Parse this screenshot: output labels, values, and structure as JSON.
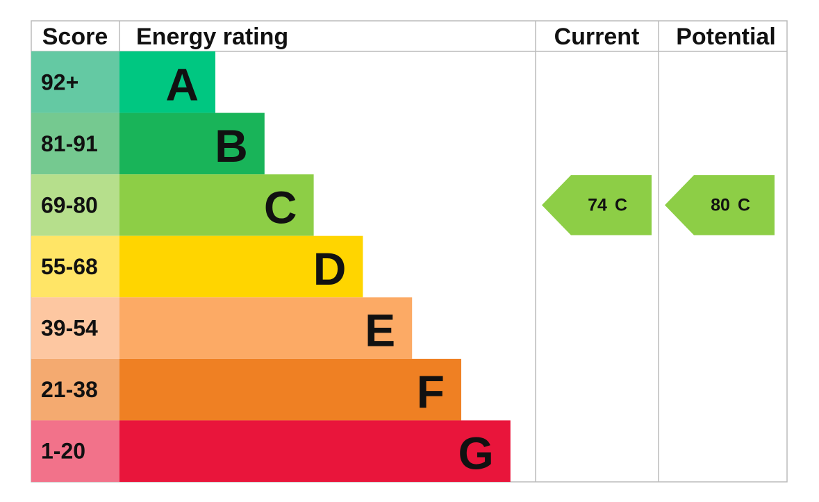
{
  "header": {
    "score": "Score",
    "rating": "Energy rating",
    "current": "Current",
    "potential": "Potential"
  },
  "bands": [
    {
      "score": "92+",
      "letter": "A",
      "color": "#00c781",
      "score_color": "#64c9a3"
    },
    {
      "score": "81-91",
      "letter": "B",
      "color": "#19b459",
      "score_color": "#75c990"
    },
    {
      "score": "69-80",
      "letter": "C",
      "color": "#8dce46",
      "score_color": "#b6df8c"
    },
    {
      "score": "55-68",
      "letter": "D",
      "color": "#ffd500",
      "score_color": "#ffe566"
    },
    {
      "score": "39-54",
      "letter": "E",
      "color": "#fcaa65",
      "score_color": "#fdc7a1"
    },
    {
      "score": "21-38",
      "letter": "F",
      "color": "#ef8023",
      "score_color": "#f4aa70"
    },
    {
      "score": "1-20",
      "letter": "G",
      "color": "#e9153b",
      "score_color": "#f2728a"
    }
  ],
  "current": {
    "score": 74,
    "letter": "C"
  },
  "potential": {
    "score": 80,
    "letter": "C"
  }
}
